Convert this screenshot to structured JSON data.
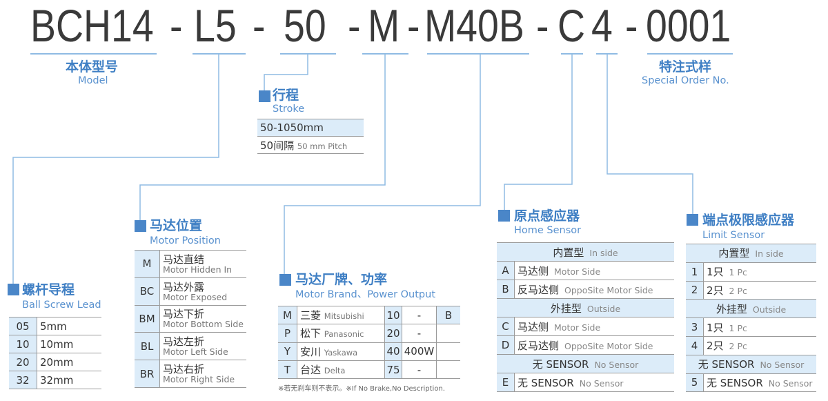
{
  "model_code": {
    "segments": [
      "BCH14",
      "-",
      "L5",
      "-",
      "50",
      "-",
      "M",
      "-",
      "M40B",
      "-",
      "C",
      "4",
      "-",
      "0001"
    ]
  },
  "model": {
    "zh": "本体型号",
    "en": "Model"
  },
  "special_order": {
    "zh": "特注式样",
    "en": "Special Order No."
  },
  "stroke": {
    "zh": "行程",
    "en": "Stroke",
    "range": "50-1050mm",
    "pitch_zh": "50间隔",
    "pitch_en": "50 mm Pitch"
  },
  "ball_screw_lead": {
    "zh": "螺杆导程",
    "en": "Ball Screw Lead",
    "rows": [
      {
        "code": "05",
        "value": "5mm"
      },
      {
        "code": "10",
        "value": "10mm"
      },
      {
        "code": "20",
        "value": "20mm"
      },
      {
        "code": "32",
        "value": "32mm"
      }
    ]
  },
  "motor_position": {
    "zh": "马达位置",
    "en": "Motor Position",
    "rows": [
      {
        "code": "M",
        "zh": "马达直结",
        "en": "Motor Hidden In"
      },
      {
        "code": "BC",
        "zh": "马达外露",
        "en": "Motor Exposed"
      },
      {
        "code": "BM",
        "zh": "马达下折",
        "en": "Motor Bottom Side"
      },
      {
        "code": "BL",
        "zh": "马达左折",
        "en": "Motor Left Side"
      },
      {
        "code": "BR",
        "zh": "马达右折",
        "en": "Motor Right Side"
      }
    ]
  },
  "motor_brand": {
    "zh": "马达厂牌、功率",
    "en": "Motor Brand、Power Output",
    "rows": [
      {
        "code": "M",
        "zh": "三菱",
        "en": "Mitsubishi",
        "power_code": "10",
        "power": "-",
        "brake": "B"
      },
      {
        "code": "P",
        "zh": "松下",
        "en": "Panasonic",
        "power_code": "20",
        "power": "-",
        "brake": ""
      },
      {
        "code": "Y",
        "zh": "安川",
        "en": "Yaskawa",
        "power_code": "40",
        "power": "400W",
        "brake": ""
      },
      {
        "code": "T",
        "zh": "台达",
        "en": "Delta",
        "power_code": "75",
        "power": "-",
        "brake": ""
      }
    ],
    "note": "※若无刹车则不表示。※If No Brake,No Description."
  },
  "home_sensor": {
    "zh": "原点感应器",
    "en": "Home Sensor",
    "rows": [
      {
        "header": true,
        "zh": "内置型",
        "en": "In side"
      },
      {
        "code": "A",
        "zh": "马达侧",
        "en": "Motor Side"
      },
      {
        "code": "B",
        "zh": "反马达侧",
        "en": "OppoSite Motor Side"
      },
      {
        "header": true,
        "zh": "外挂型",
        "en": "Outside"
      },
      {
        "code": "C",
        "zh": "马达侧",
        "en": "Motor Side"
      },
      {
        "code": "D",
        "zh": "反马达侧",
        "en": "OppoSite Motor Side"
      },
      {
        "header": true,
        "zh": "无 SENSOR",
        "en": "No Sensor"
      },
      {
        "code": "E",
        "zh": "无 SENSOR",
        "en": "No Sensor"
      }
    ]
  },
  "limit_sensor": {
    "zh": "端点极限感应器",
    "en": "Limit Sensor",
    "rows": [
      {
        "header": true,
        "zh": "内置型",
        "en": "In side"
      },
      {
        "code": "1",
        "zh": "1只",
        "en": "1 Pc"
      },
      {
        "code": "2",
        "zh": "2只",
        "en": "2 Pc"
      },
      {
        "header": true,
        "zh": "外挂型",
        "en": "Outside"
      },
      {
        "code": "3",
        "zh": "1只",
        "en": "1 Pc"
      },
      {
        "code": "4",
        "zh": "2只",
        "en": "2 Pc"
      },
      {
        "header": true,
        "zh": "无 SENSOR",
        "en": "No Sensor"
      },
      {
        "code": "5",
        "zh": "无 SENSOR",
        "en": "No Sensor"
      }
    ]
  },
  "colors": {
    "accent": "#4a86c8",
    "line": "#8fbbe3",
    "cell": "#dcecf9"
  }
}
